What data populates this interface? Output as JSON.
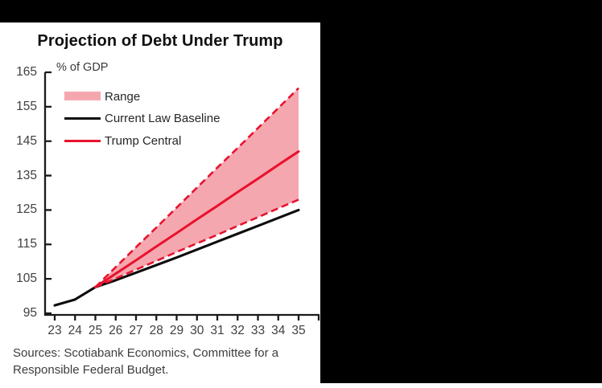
{
  "page": {
    "top_bar_color": "#000000",
    "right_panel_color": "#000000",
    "card_background": "#ffffff"
  },
  "title": "Projection of Debt Under Trump",
  "axis_unit_label": "% of GDP",
  "legend": {
    "position": "top-left",
    "items": [
      {
        "label": "Range",
        "type": "fill",
        "color": "#f5a7b0"
      },
      {
        "label": "Current Law Baseline",
        "type": "line",
        "color": "#0d0d0d"
      },
      {
        "label": "Trump Central",
        "type": "line",
        "color": "#e8132e"
      }
    ]
  },
  "sources": "Sources: Scotiabank Economics, Committee for a Responsible Federal Budget.",
  "chart_data": {
    "type": "line",
    "title": "Projection of Debt Under Trump",
    "xlabel": "",
    "ylabel": "% of GDP",
    "ylim": [
      95,
      165
    ],
    "xlim": [
      23,
      35
    ],
    "grid": false,
    "y_ticks": [
      95,
      105,
      115,
      125,
      135,
      145,
      155,
      165
    ],
    "x_ticks": [
      23,
      24,
      25,
      26,
      27,
      28,
      29,
      30,
      31,
      32,
      33,
      34,
      35
    ],
    "axis_color": "#1a1a1a",
    "series": [
      {
        "name": "Current Law Baseline",
        "style": "solid",
        "color": "#0d0d0d",
        "x": [
          23,
          24,
          25,
          26,
          27,
          28,
          29,
          30,
          31,
          32,
          33,
          34,
          35
        ],
        "values": [
          97.3,
          99,
          102.6,
          104.6,
          106.8,
          109,
          111.2,
          113.5,
          115.8,
          118.1,
          120.4,
          122.7,
          125
        ]
      },
      {
        "name": "Range Upper",
        "style": "dashed",
        "color": "#e8132e",
        "x": [
          25,
          26,
          27,
          28,
          29,
          30,
          31,
          32,
          33,
          34,
          35
        ],
        "values": [
          102.6,
          108.4,
          114.2,
          119.9,
          125.7,
          131.5,
          137.3,
          143,
          148.8,
          154.6,
          160.4
        ]
      },
      {
        "name": "Range Lower",
        "style": "dashed",
        "color": "#e8132e",
        "x": [
          25,
          26,
          27,
          28,
          29,
          30,
          31,
          32,
          33,
          34,
          35
        ],
        "values": [
          102.6,
          105.1,
          107.7,
          110.2,
          112.8,
          115.3,
          117.8,
          120.4,
          122.9,
          125.5,
          128
        ]
      },
      {
        "name": "Trump Central",
        "style": "solid",
        "color": "#e8132e",
        "x": [
          25,
          26,
          27,
          28,
          29,
          30,
          31,
          32,
          33,
          34,
          35
        ],
        "values": [
          102.6,
          106.5,
          110.4,
          114.4,
          118.3,
          122.3,
          126.2,
          130.2,
          134.1,
          138.1,
          142
        ]
      }
    ],
    "range_fill": {
      "between": [
        "Range Upper",
        "Range Lower"
      ],
      "color": "#f5a7b0",
      "label": "Range"
    }
  }
}
